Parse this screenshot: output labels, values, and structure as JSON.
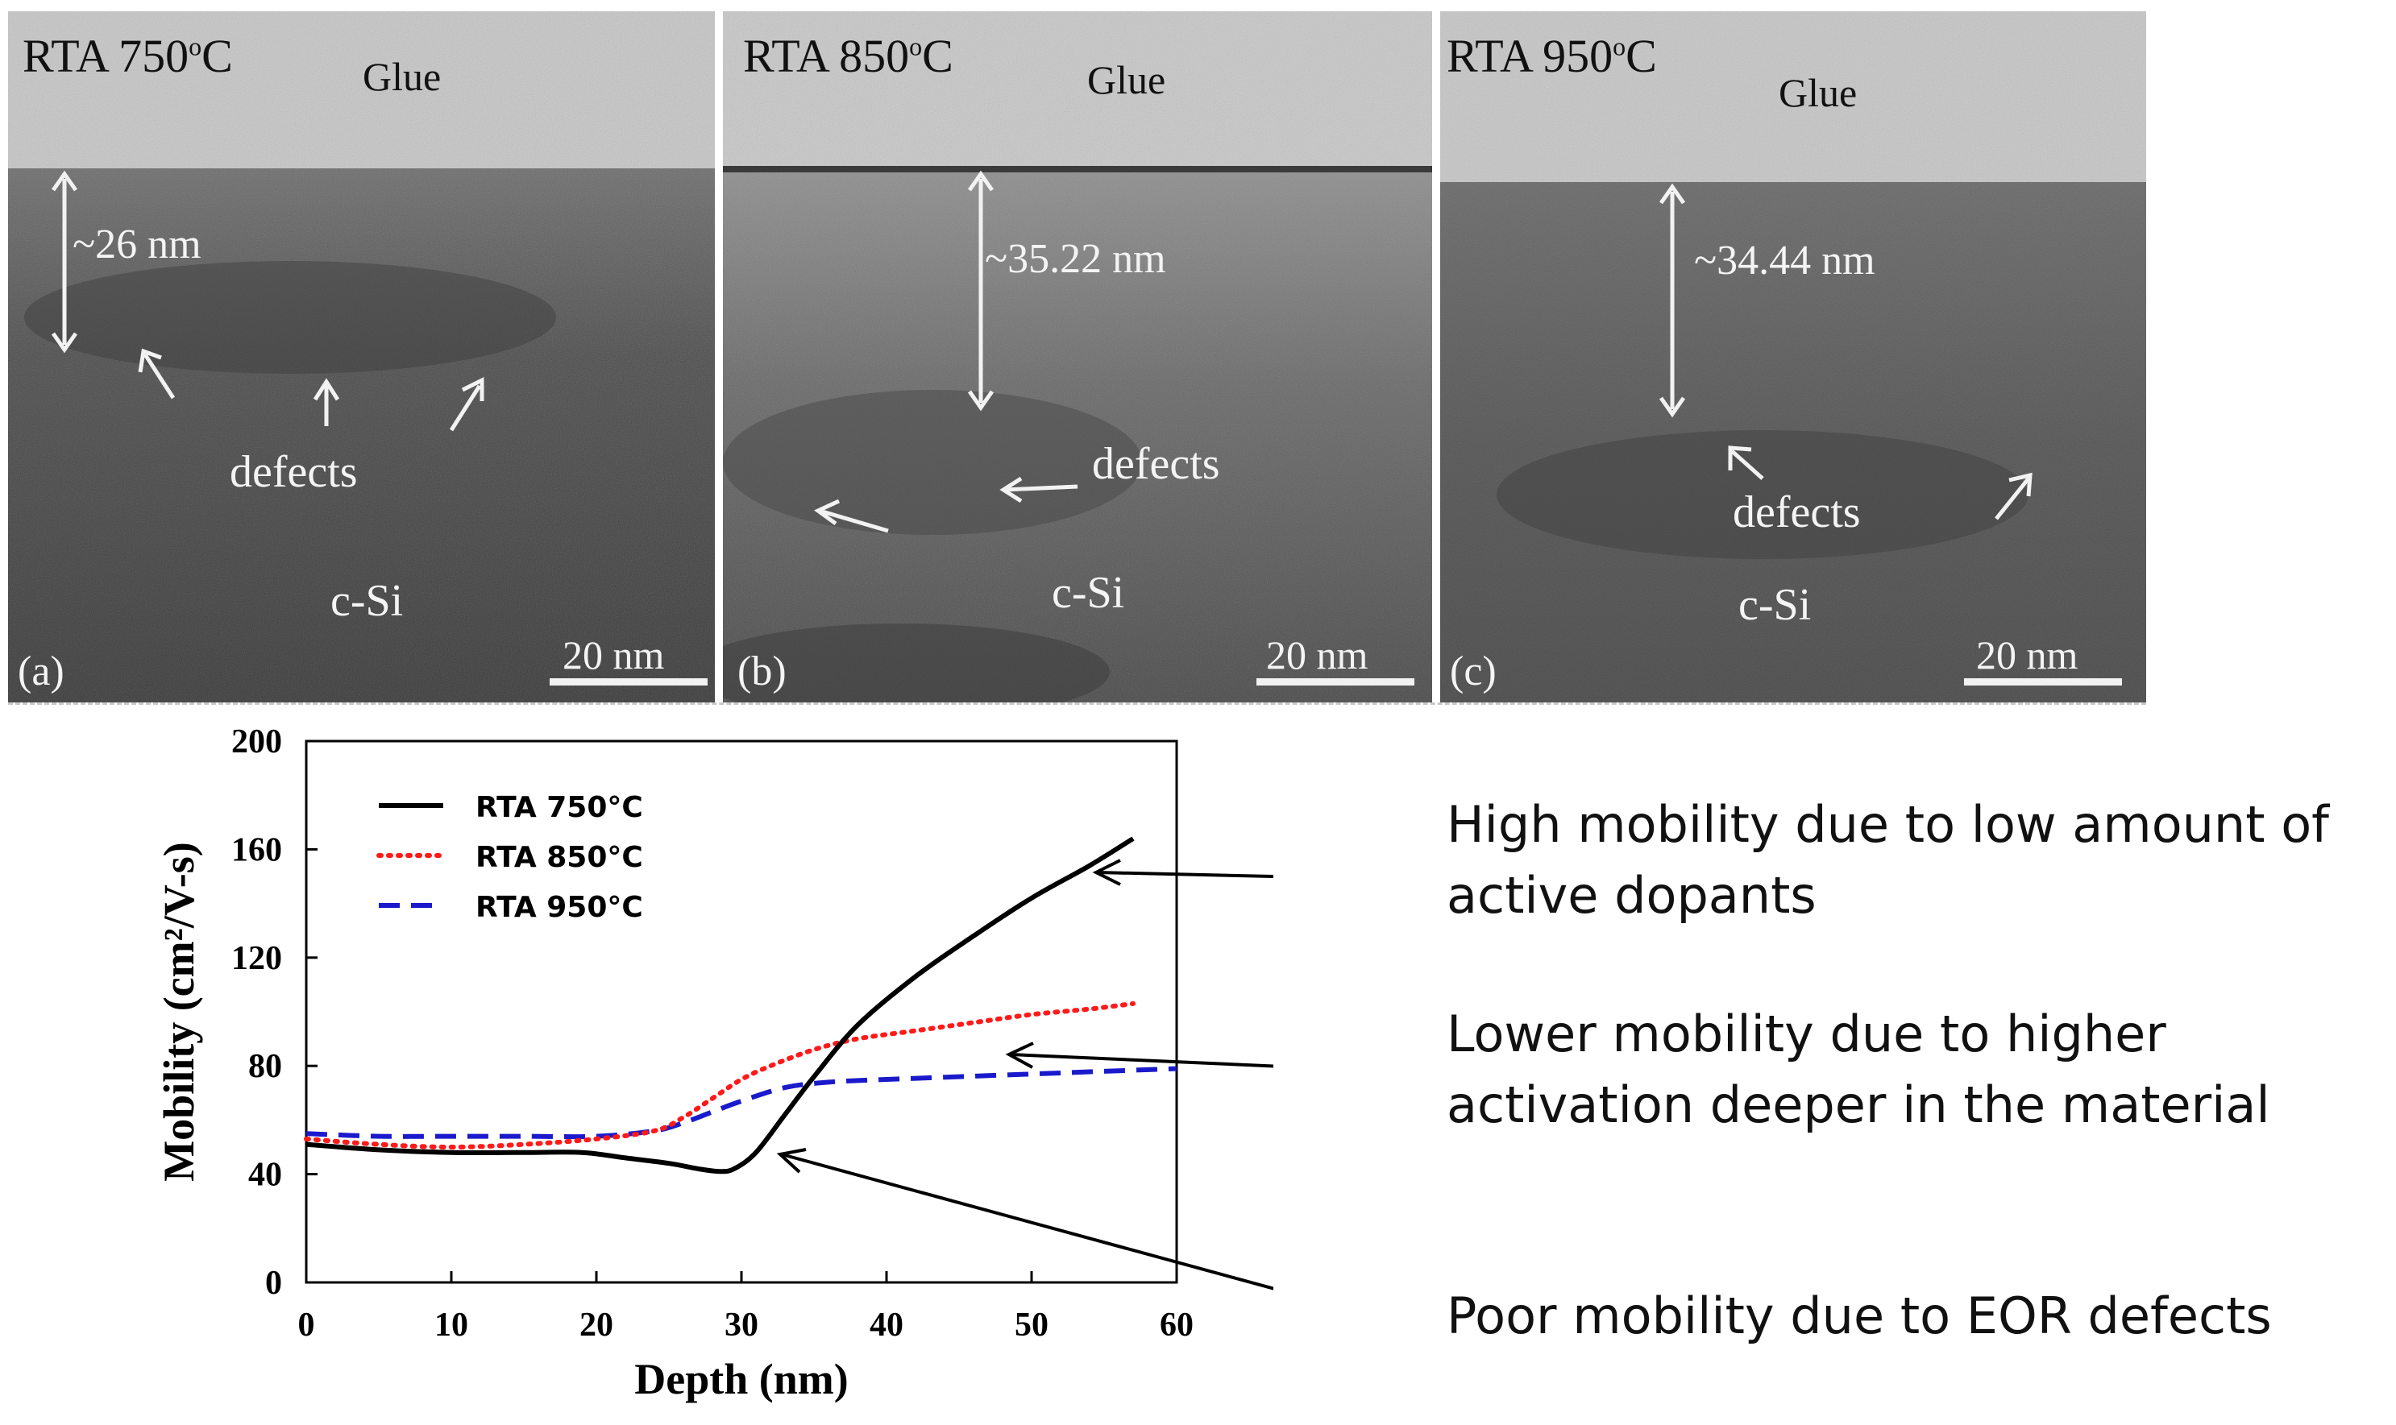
{
  "panels": [
    {
      "id": "a",
      "title": "RTA 750",
      "title_sup": "o",
      "title_unit": "C",
      "glue": "Glue",
      "depth": "~26 nm",
      "defects": "defects",
      "substrate": "c-Si",
      "label": "(a)",
      "scale": "20 nm"
    },
    {
      "id": "b",
      "title": "RTA 850",
      "title_sup": "o",
      "title_unit": "C",
      "glue": "Glue",
      "depth": "~35.22 nm",
      "defects": "defects",
      "substrate": "c-Si",
      "label": "(b)",
      "scale": "20 nm"
    },
    {
      "id": "c",
      "title": "RTA 950",
      "title_sup": "o",
      "title_unit": "C",
      "glue": "Glue",
      "depth": "~34.44 nm",
      "defects": "defects",
      "substrate": "c-Si",
      "label": "(c)",
      "scale": "20 nm"
    }
  ],
  "annotations": {
    "high": [
      "High mobility due to low amount of",
      "active dopants"
    ],
    "lower": [
      "Lower mobility due to higher",
      "activation deeper in the material"
    ],
    "poor": [
      "Poor mobility due to EOR defects"
    ]
  },
  "colors": {
    "rta750": "#000000",
    "rta850": "#ff1a1a",
    "rta950": "#1a1acc",
    "glue": "#c3c3c3",
    "silicon": "#555555"
  },
  "chart_data": {
    "type": "line",
    "xlabel": "Depth (nm)",
    "ylabel": "Mobility (cm²/V-s)",
    "xlim": [
      0,
      60
    ],
    "ylim": [
      0,
      200
    ],
    "xticks": [
      0,
      10,
      20,
      30,
      40,
      50,
      60
    ],
    "yticks": [
      0,
      40,
      80,
      120,
      160,
      200
    ],
    "legend_position": "top-left",
    "series": [
      {
        "name": "RTA 750°C",
        "style": "solid",
        "color": "#000000",
        "x": [
          0,
          5,
          10,
          15,
          19,
          22,
          25,
          27,
          28.5,
          29.5,
          31,
          33,
          35,
          38,
          42,
          46,
          50,
          54,
          57
        ],
        "y": [
          51,
          49,
          48,
          48,
          48,
          46,
          44,
          42,
          41,
          42,
          48,
          62,
          76,
          95,
          113,
          128,
          142,
          154,
          164
        ]
      },
      {
        "name": "RTA 850°C",
        "style": "dotted",
        "color": "#ff1a1a",
        "x": [
          0,
          5,
          10,
          15,
          20,
          24,
          26,
          28,
          30,
          32,
          35,
          38,
          42,
          46,
          50,
          54,
          57
        ],
        "y": [
          53,
          51,
          50,
          51,
          53,
          56,
          61,
          68,
          75,
          80,
          86,
          90,
          93,
          96,
          99,
          101,
          103
        ]
      },
      {
        "name": "RTA 950°C",
        "style": "dashed",
        "color": "#1a1acc",
        "x": [
          0,
          5,
          10,
          15,
          20,
          24,
          26,
          28,
          30,
          33,
          36,
          40,
          45,
          50,
          55,
          60
        ],
        "y": [
          55,
          54,
          54,
          54,
          54,
          56,
          59,
          63,
          67,
          72,
          74,
          75,
          76,
          77,
          78,
          79
        ]
      }
    ]
  }
}
